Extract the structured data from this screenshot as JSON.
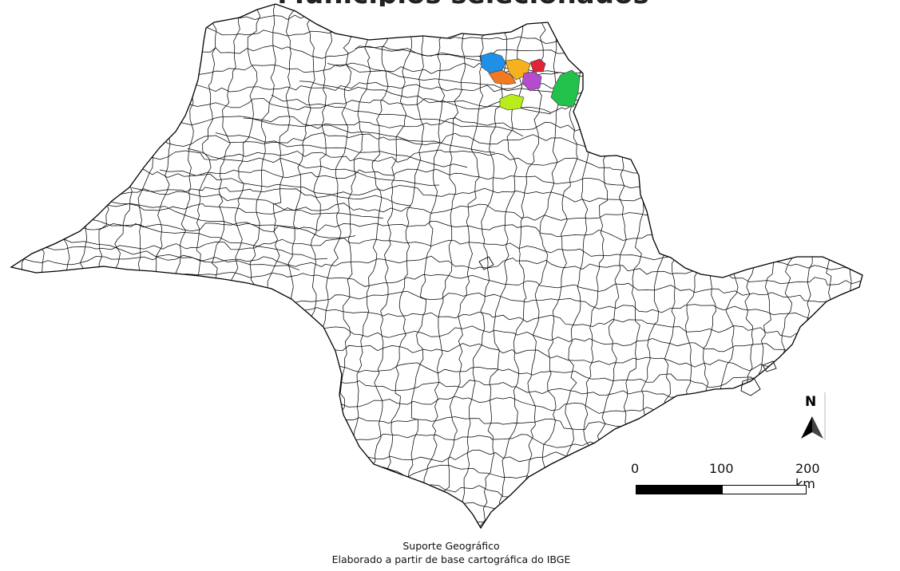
{
  "map": {
    "title": "Municípios selecionados",
    "region": "São Paulo",
    "highlighted_municipalities": [
      {
        "name": "municipio-azul",
        "color": "#1e90e8"
      },
      {
        "name": "municipio-laranja-escuro",
        "color": "#f07a20"
      },
      {
        "name": "municipio-laranja",
        "color": "#f5b21e"
      },
      {
        "name": "municipio-vermelho",
        "color": "#e0243a"
      },
      {
        "name": "municipio-roxo",
        "color": "#b54ccf"
      },
      {
        "name": "municipio-verde",
        "color": "#22c24a"
      },
      {
        "name": "municipio-verde-limao",
        "color": "#b9ec1c"
      }
    ],
    "outline_color": "#000000",
    "fill_color": "#ffffff"
  },
  "north_arrow": {
    "label": "N"
  },
  "scale_bar": {
    "label_start": "0",
    "label_mid": "100",
    "label_end": "200 km"
  },
  "credits": {
    "line1": "Suporte Geográfico",
    "line2": "Elaborado a partir de base cartográfica do IBGE"
  }
}
